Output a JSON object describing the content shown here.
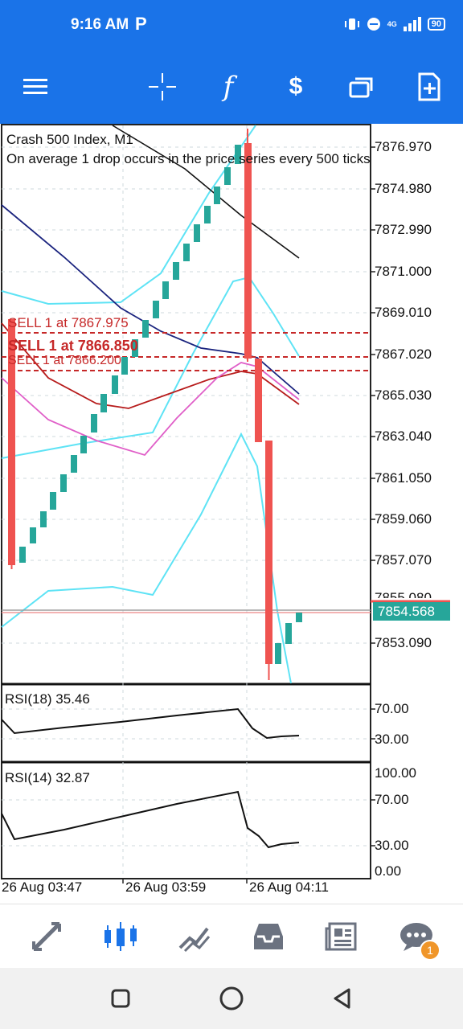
{
  "status": {
    "time": "9:16 AM",
    "carrier_mark": "P",
    "network": "4G",
    "battery": "90"
  },
  "toolbar": {
    "menu": "menu-icon",
    "crosshair": "crosshair-icon",
    "indicators": "f",
    "trade": "$",
    "windows": "windows-icon",
    "new_order": "add-order-icon"
  },
  "chart": {
    "symbol_line": "Crash 500 Index, M1",
    "desc_line": "On average 1 drop occurs in the price series every 500 ticks",
    "price_labels": [
      "7876.970",
      "7874.980",
      "7872.990",
      "7871.000",
      "7869.010",
      "7867.020",
      "7865.030",
      "7863.040",
      "7861.050",
      "7859.060",
      "7857.070",
      "7855.080",
      "7853.090"
    ],
    "current_price": "7854.568",
    "orders": [
      "SELL 1 at 7867.975",
      "SELL 1 at 7866.850",
      "SELL 1 at 7866.200"
    ],
    "time_labels": [
      "26 Aug 03:47",
      "26 Aug 03:59",
      "26 Aug 04:11"
    ],
    "colors": {
      "bull": "#26a69a",
      "bear": "#ef5350",
      "order": "#c62828",
      "band": "#5ee3f5"
    }
  },
  "rsi1": {
    "label": "RSI(18) 35.46",
    "levels": [
      "70.00",
      "30.00"
    ]
  },
  "rsi2": {
    "label": "RSI(14) 32.87",
    "levels": [
      "100.00",
      "70.00",
      "30.00",
      "0.00"
    ]
  },
  "bottom_nav": {
    "quotes": "quotes-icon",
    "chart": "chart-icon",
    "trade": "trade-icon",
    "history": "history-icon",
    "news": "news-icon",
    "messages": "messages-icon",
    "messages_badge": "1"
  }
}
